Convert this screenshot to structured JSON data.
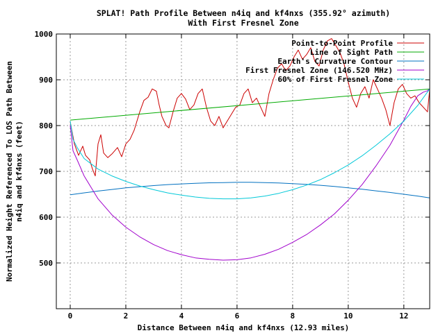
{
  "chart_data": {
    "type": "line",
    "title_line1": "SPLAT! Path Profile Between n4iq and kf4nxs (355.92° azimuth)",
    "title_line2": "With First Fresnel Zone",
    "xlabel": "Distance Between n4iq and kf4nxs (12.93 miles)",
    "ylabel_line1": "Normalized Height Referenced To LOS Path Between",
    "ylabel_line2": "n4iq and kf4nxs (feet)",
    "xlim": [
      -0.5,
      12.93
    ],
    "ylim": [
      400,
      1000
    ],
    "x_ticks": [
      0,
      2,
      4,
      6,
      8,
      10,
      12
    ],
    "y_ticks": [
      500,
      600,
      700,
      800,
      900,
      1000
    ],
    "grid": true,
    "legend_placement": "top-right",
    "series": [
      {
        "name": "Point-to-Point Profile",
        "color": "#cc0000",
        "x": [
          0,
          0.15,
          0.3,
          0.45,
          0.55,
          0.7,
          0.8,
          0.9,
          1.0,
          1.1,
          1.2,
          1.35,
          1.5,
          1.7,
          1.85,
          2.0,
          2.15,
          2.3,
          2.5,
          2.65,
          2.8,
          2.95,
          3.1,
          3.2,
          3.3,
          3.45,
          3.55,
          3.7,
          3.85,
          4.0,
          4.15,
          4.3,
          4.45,
          4.6,
          4.75,
          4.9,
          5.05,
          5.2,
          5.35,
          5.5,
          5.65,
          5.8,
          5.95,
          6.1,
          6.25,
          6.4,
          6.55,
          6.7,
          6.85,
          7.0,
          7.15,
          7.3,
          7.45,
          7.6,
          7.75,
          7.9,
          8.05,
          8.2,
          8.35,
          8.5,
          8.65,
          8.8,
          8.95,
          9.1,
          9.25,
          9.4,
          9.55,
          9.7,
          9.85,
          10.0,
          10.15,
          10.3,
          10.45,
          10.6,
          10.75,
          10.9,
          11.05,
          11.2,
          11.35,
          11.5,
          11.65,
          11.8,
          11.95,
          12.1,
          12.25,
          12.4,
          12.55,
          12.7,
          12.85,
          12.93
        ],
        "y": [
          808,
          760,
          735,
          755,
          735,
          725,
          705,
          690,
          760,
          780,
          740,
          730,
          738,
          752,
          732,
          760,
          770,
          790,
          830,
          855,
          862,
          880,
          875,
          845,
          820,
          800,
          795,
          830,
          860,
          870,
          858,
          835,
          845,
          870,
          880,
          840,
          810,
          800,
          820,
          795,
          810,
          825,
          840,
          845,
          870,
          880,
          850,
          860,
          840,
          820,
          870,
          900,
          925,
          935,
          920,
          930,
          950,
          965,
          945,
          955,
          970,
          940,
          930,
          965,
          985,
          990,
          975,
          960,
          935,
          895,
          860,
          840,
          870,
          885,
          860,
          900,
          880,
          860,
          835,
          800,
          850,
          880,
          890,
          870,
          860,
          865,
          850,
          840,
          830,
          878
        ]
      },
      {
        "name": "Line of Sight Path",
        "color": "#00aa00",
        "x": [
          0,
          12.93
        ],
        "y": [
          812,
          880
        ]
      },
      {
        "name": "Earth's Curvature Contour",
        "color": "#0070c0",
        "x": [
          0,
          0.5,
          1,
          1.5,
          2,
          2.5,
          3,
          3.5,
          4,
          4.5,
          5,
          5.5,
          6,
          6.5,
          7,
          7.5,
          8,
          8.5,
          9,
          9.5,
          10,
          10.5,
          11,
          11.5,
          12,
          12.5,
          12.93
        ],
        "y": [
          649,
          653,
          657,
          660.5,
          664,
          666.5,
          669,
          671,
          672.5,
          674,
          675,
          675.5,
          676,
          676,
          675.5,
          674.5,
          673,
          671.5,
          669.5,
          667,
          664,
          661,
          657.5,
          654,
          650,
          646,
          642
        ]
      },
      {
        "name": "First Fresnel Zone (146.520 MHz)",
        "color": "#a000cc",
        "x": [
          0,
          0.1,
          0.25,
          0.5,
          0.75,
          1,
          1.5,
          2,
          2.5,
          3,
          3.5,
          4,
          4.5,
          5,
          5.5,
          6,
          6.5,
          7,
          7.5,
          8,
          8.5,
          9,
          9.5,
          10,
          10.5,
          11,
          11.5,
          12,
          12.25,
          12.5,
          12.7,
          12.85,
          12.93
        ],
        "y": [
          800,
          745,
          725,
          690,
          665,
          640,
          605,
          578,
          557,
          540,
          527,
          518,
          511,
          508,
          506,
          507,
          511,
          519,
          530,
          545,
          562,
          583,
          607,
          637,
          671,
          712,
          757,
          812,
          842,
          865,
          873,
          876,
          880
        ]
      },
      {
        "name": "60% of First Fresnel Zone",
        "color": "#00c8d8",
        "x": [
          0,
          0.1,
          0.25,
          0.5,
          1,
          1.5,
          2,
          2.5,
          3,
          3.5,
          4,
          4.5,
          5,
          5.5,
          6,
          6.5,
          7,
          7.5,
          8,
          8.5,
          9,
          9.5,
          10,
          10.5,
          11,
          11.5,
          12,
          12.5,
          12.93
        ],
        "y": [
          810,
          770,
          752,
          728,
          705,
          690,
          678,
          668,
          660,
          653,
          648,
          644,
          641,
          640,
          640,
          642,
          646,
          652,
          660,
          670,
          682,
          697,
          714,
          734,
          757,
          782,
          810,
          844,
          880
        ]
      }
    ]
  }
}
